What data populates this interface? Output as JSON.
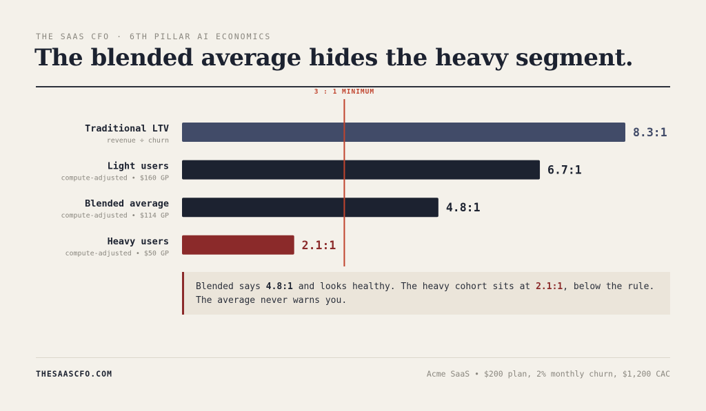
{
  "header": {
    "brand": "THE SAAS CFO",
    "separator": "·",
    "section": "6TH PILLAR AI ECONOMICS",
    "title": "The blended average hides the heavy segment."
  },
  "chart_data": {
    "type": "bar",
    "orientation": "horizontal",
    "xlim": [
      0,
      8.3
    ],
    "categories": [
      "Traditional LTV",
      "Light users",
      "Blended average",
      "Heavy users"
    ],
    "sublabels": [
      "revenue ÷ churn",
      "compute-adjusted • $160 GP",
      "compute-adjusted • $114 GP",
      "compute-adjusted • $50 GP"
    ],
    "values": [
      8.3,
      6.7,
      4.8,
      2.1
    ],
    "value_labels": [
      "8.3:1",
      "6.7:1",
      "4.8:1",
      "2.1:1"
    ],
    "bar_colors": [
      "#414b68",
      "#1c2230",
      "#1c2230",
      "#8b2a2a"
    ],
    "label_colors": [
      "#414b68",
      "#1c2230",
      "#1c2230",
      "#8b2a2a"
    ],
    "threshold": {
      "value": 3,
      "label": "3 : 1 MINIMUM",
      "color": "#c0442e"
    }
  },
  "callout": {
    "t1": "Blended says ",
    "v1": "4.8:1",
    "t2": " and looks healthy. The heavy cohort sits at ",
    "v2": "2.1:1",
    "t3": ", below the rule. The average never warns you."
  },
  "footer": {
    "site": "THESAASCFO.COM",
    "note": "Acme SaaS • $200 plan, 2% monthly churn, $1,200 CAC"
  }
}
